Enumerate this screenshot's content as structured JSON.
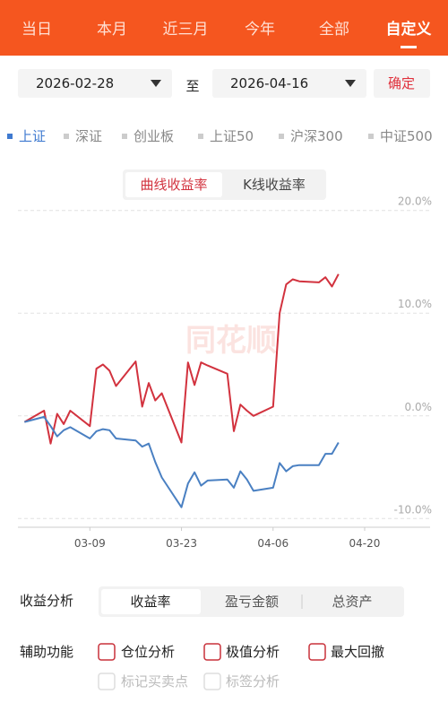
{
  "header": {
    "tabs": [
      "当日",
      "本月",
      "近三月",
      "今年",
      "全部",
      "自定义"
    ]
  },
  "date_range": {
    "start": "2026-02-28",
    "separator": "至",
    "end": "2026-04-16",
    "confirm": "确定"
  },
  "indices": {
    "items": [
      "上证",
      "深证",
      "创业板",
      "上证50",
      "沪深300",
      "中证500"
    ]
  },
  "chart_mode": {
    "options": [
      "曲线收益率",
      "K线收益率"
    ]
  },
  "chart_data": {
    "type": "line",
    "watermark": "同花顺",
    "x": [
      "02-27",
      "03-02",
      "03-03",
      "03-04",
      "03-05",
      "03-06",
      "03-09",
      "03-10",
      "03-11",
      "03-12",
      "03-13",
      "03-16",
      "03-17",
      "03-18",
      "03-19",
      "03-20",
      "03-23",
      "03-24",
      "03-25",
      "03-26",
      "03-27",
      "03-30",
      "03-31",
      "04-01",
      "04-02",
      "04-03",
      "04-06",
      "04-07",
      "04-08",
      "04-09",
      "04-10",
      "04-13",
      "04-14",
      "04-15",
      "04-16"
    ],
    "series": [
      {
        "color": "#d2323e",
        "values": [
          -0.6,
          0.5,
          -2.7,
          0.2,
          -0.8,
          0.5,
          -1.0,
          4.6,
          5.0,
          4.4,
          2.9,
          5.3,
          0.9,
          3.2,
          1.5,
          2.2,
          -2.6,
          5.2,
          3.0,
          5.2,
          4.9,
          4.1,
          -1.5,
          1.1,
          0.5,
          0.0,
          0.9,
          10.0,
          12.8,
          13.3,
          13.1,
          13.0,
          13.5,
          12.6,
          13.8
        ]
      },
      {
        "color": "#4a80c2",
        "values": [
          -0.6,
          -0.1,
          -1.0,
          -2.0,
          -1.4,
          -1.1,
          -2.2,
          -1.5,
          -1.3,
          -1.4,
          -2.2,
          -2.4,
          -3.0,
          -2.7,
          -4.5,
          -6.0,
          -8.9,
          -6.6,
          -5.5,
          -6.8,
          -6.3,
          -6.2,
          -7.0,
          -5.4,
          -6.2,
          -7.3,
          -7.0,
          -4.6,
          -5.4,
          -4.9,
          -4.8,
          -4.8,
          -3.7,
          -3.7,
          -2.6
        ]
      }
    ],
    "xlim": [
      "02-26",
      "04-30"
    ],
    "xticks": [
      "03-09",
      "03-23",
      "04-06",
      "04-20"
    ],
    "ylim": [
      -10.5,
      20.5
    ],
    "yticks": [
      {
        "value": 20,
        "label": "20.0%"
      },
      {
        "value": 10,
        "label": "10.0%"
      },
      {
        "value": 0,
        "label": "0.0%"
      },
      {
        "value": -10,
        "label": "-10.0%"
      }
    ],
    "grid": true
  },
  "analysis": {
    "label": "收益分析",
    "options": [
      "收益率",
      "盈亏金额",
      "总资产"
    ]
  },
  "aux": {
    "label": "辅助功能",
    "options": [
      "仓位分析",
      "极值分析",
      "最大回撤"
    ],
    "disabled": [
      "标记买卖点",
      "标签分析"
    ]
  }
}
